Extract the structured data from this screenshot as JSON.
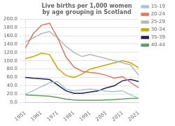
{
  "chart_data": {
    "type": "line",
    "title": "Live births per 1,000 women by age grouping in Scotland",
    "x": [
      1951,
      1956,
      1961,
      1966,
      1971,
      1976,
      1981,
      1986,
      1991,
      1996,
      2001,
      2006,
      2011,
      2016,
      2021
    ],
    "series": [
      {
        "name": "15-19",
        "color": "#a8c4dc",
        "values": [
          20,
          28,
          38,
          47,
          50,
          32,
          28,
          30,
          32,
          30,
          27,
          26,
          28,
          18,
          10
        ]
      },
      {
        "name": "20-24",
        "color": "#e07858",
        "values": [
          130,
          165,
          185,
          190,
          155,
          110,
          85,
          75,
          72,
          70,
          65,
          58,
          62,
          48,
          35
        ]
      },
      {
        "name": "25-29",
        "color": "#b8b8b8",
        "values": [
          145,
          155,
          165,
          170,
          155,
          135,
          120,
          110,
          115,
          110,
          105,
          100,
          95,
          90,
          65
        ]
      },
      {
        "name": "30-34",
        "color": "#c8a800",
        "values": [
          105,
          110,
          118,
          115,
          82,
          65,
          60,
          68,
          80,
          85,
          90,
          95,
          100,
          95,
          83
        ]
      },
      {
        "name": "35-39",
        "color": "#202060",
        "values": [
          60,
          58,
          57,
          55,
          42,
          28,
          22,
          22,
          25,
          28,
          35,
          40,
          52,
          55,
          50
        ]
      },
      {
        "name": "40-44",
        "color": "#60a060",
        "values": [
          18,
          17,
          16,
          15,
          12,
          8,
          6,
          5,
          5,
          5,
          6,
          7,
          8,
          10,
          10
        ]
      }
    ],
    "xlim": [
      1951,
      2021
    ],
    "ylim": [
      0.0,
      200.0
    ],
    "xticks": [
      1951,
      1961,
      1971,
      1981,
      1991,
      2001,
      2011,
      2021
    ],
    "yticks": [
      {
        "value": 0,
        "label": "0.0"
      },
      {
        "value": 20,
        "label": "20.0"
      },
      {
        "value": 40,
        "label": "40.0"
      },
      {
        "value": 60,
        "label": "60.0"
      },
      {
        "value": 80,
        "label": "80.0"
      },
      {
        "value": 100,
        "label": "100.0"
      },
      {
        "value": 120,
        "label": "120.0"
      },
      {
        "value": 140,
        "label": "140.0"
      },
      {
        "value": 160,
        "label": "160.0"
      },
      {
        "value": 180,
        "label": "180.0"
      },
      {
        "value": 200,
        "label": "200.0"
      }
    ],
    "grid": "y",
    "legend": "upper right"
  }
}
